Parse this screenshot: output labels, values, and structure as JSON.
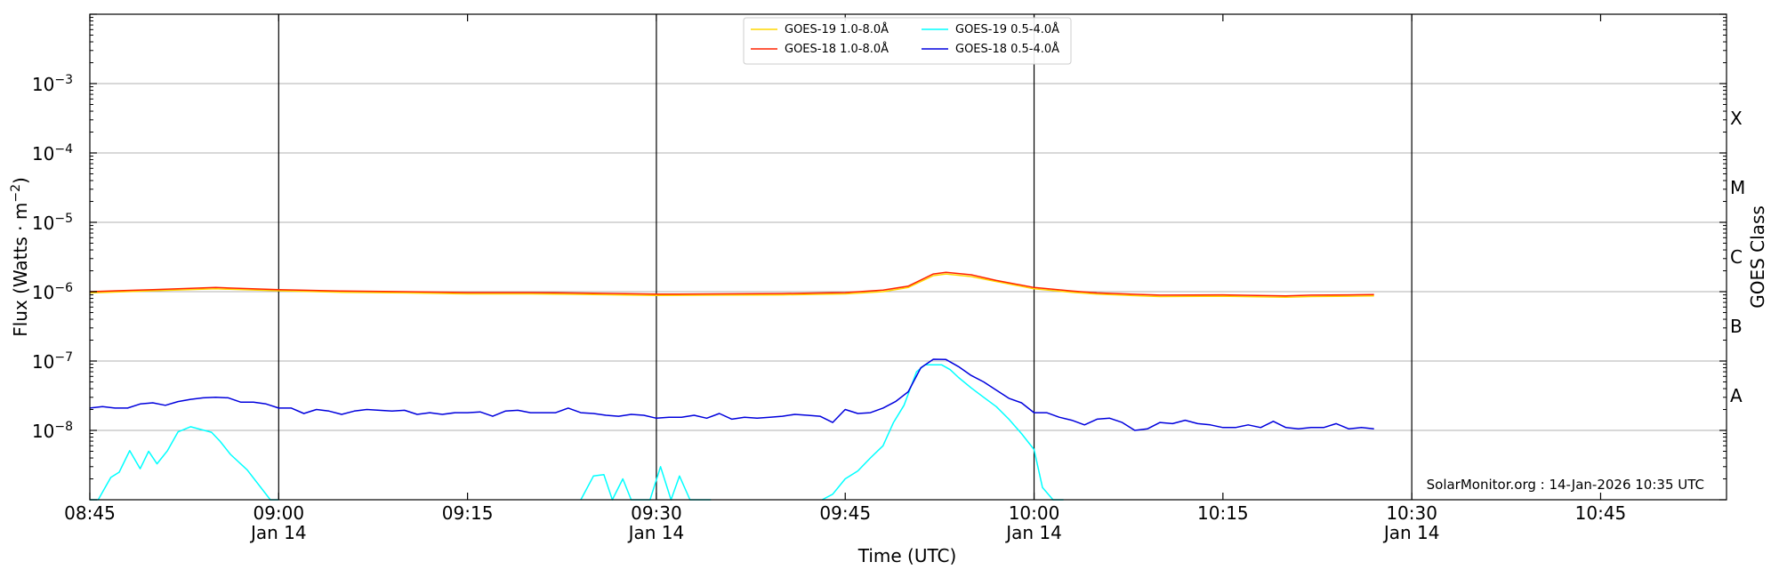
{
  "chart_data": {
    "type": "line",
    "xlabel": "Time (UTC)",
    "ylabel": {
      "base": "Flux (Watts · m",
      "sup": "−2",
      "tail": ")"
    },
    "right_label": "GOES Class",
    "credit": "SolarMonitor.org : 14-Jan-2026 10:35 UTC",
    "y_scale": "log",
    "ylim": [
      1e-09,
      0.01
    ],
    "x_range": [
      "08:45",
      "10:55"
    ],
    "grid": "horizontal at decades",
    "legend_position": "top-center",
    "x_ticks": [
      {
        "t": "08:45",
        "label": "08:45",
        "sub": ""
      },
      {
        "t": "09:00",
        "label": "09:00",
        "sub": "Jan 14"
      },
      {
        "t": "09:15",
        "label": "09:15",
        "sub": ""
      },
      {
        "t": "09:30",
        "label": "09:30",
        "sub": "Jan 14"
      },
      {
        "t": "09:45",
        "label": "09:45",
        "sub": ""
      },
      {
        "t": "10:00",
        "label": "10:00",
        "sub": "Jan 14"
      },
      {
        "t": "10:15",
        "label": "10:15",
        "sub": ""
      },
      {
        "t": "10:30",
        "label": "10:30",
        "sub": "Jan 14"
      },
      {
        "t": "10:45",
        "label": "10:45",
        "sub": ""
      }
    ],
    "vertical_markers": [
      "09:00",
      "09:30",
      "10:00",
      "10:30"
    ],
    "y_ticks": [
      {
        "exp": -8,
        "label": "10",
        "sup": "−8"
      },
      {
        "exp": -7,
        "label": "10",
        "sup": "−7"
      },
      {
        "exp": -6,
        "label": "10",
        "sup": "−6"
      },
      {
        "exp": -5,
        "label": "10",
        "sup": "−5"
      },
      {
        "exp": -4,
        "label": "10",
        "sup": "−4"
      },
      {
        "exp": -3,
        "label": "10",
        "sup": "−3"
      }
    ],
    "goes_classes": [
      {
        "label": "A",
        "exp": -7.5
      },
      {
        "label": "B",
        "exp": -6.5
      },
      {
        "label": "C",
        "exp": -5.5
      },
      {
        "label": "M",
        "exp": -4.5
      },
      {
        "label": "X",
        "exp": -3.5
      }
    ],
    "series": [
      {
        "name": "GOES-19 1.0-8.0Å",
        "color": "#ffd700",
        "x": [
          "08:45",
          "08:50",
          "08:55",
          "09:00",
          "09:05",
          "09:10",
          "09:15",
          "09:20",
          "09:25",
          "09:30",
          "09:35",
          "09:40",
          "09:45",
          "09:48",
          "09:50",
          "09:52",
          "09:53",
          "09:55",
          "09:57",
          "10:00",
          "10:03",
          "10:05",
          "10:10",
          "10:15",
          "10:20",
          "10:22",
          "10:25",
          "10:27"
        ],
        "y": [
          9.6e-07,
          1.03e-06,
          1.1e-06,
          1.03e-06,
          9.8e-07,
          9.6e-07,
          9.3e-07,
          9.3e-07,
          9.1e-07,
          8.8e-07,
          8.9e-07,
          9e-07,
          9.3e-07,
          1e-06,
          1.15e-06,
          1.7e-06,
          1.8e-06,
          1.65e-06,
          1.4e-06,
          1.1e-06,
          9.8e-07,
          9.2e-07,
          8.5e-07,
          8.6e-07,
          8.3e-07,
          8.5e-07,
          8.6e-07,
          8.7e-07
        ]
      },
      {
        "name": "GOES-18 1.0-8.0Å",
        "color": "#ff2200",
        "x": [
          "08:45",
          "08:50",
          "08:55",
          "09:00",
          "09:05",
          "09:10",
          "09:15",
          "09:20",
          "09:25",
          "09:30",
          "09:35",
          "09:40",
          "09:45",
          "09:48",
          "09:50",
          "09:52",
          "09:53",
          "09:55",
          "09:57",
          "10:00",
          "10:03",
          "10:05",
          "10:10",
          "10:15",
          "10:20",
          "10:22",
          "10:25",
          "10:27"
        ],
        "y": [
          1e-06,
          1.07e-06,
          1.15e-06,
          1.07e-06,
          1.02e-06,
          1e-06,
          9.7e-07,
          9.7e-07,
          9.5e-07,
          9.2e-07,
          9.3e-07,
          9.4e-07,
          9.7e-07,
          1.05e-06,
          1.2e-06,
          1.8e-06,
          1.9e-06,
          1.75e-06,
          1.45e-06,
          1.15e-06,
          1.02e-06,
          9.6e-07,
          8.9e-07,
          9e-07,
          8.7e-07,
          8.9e-07,
          9e-07,
          9.1e-07
        ]
      },
      {
        "name": "GOES-19 0.5-4.0Å",
        "color": "#00ffff",
        "segments": [
          {
            "x": [
              "08:45",
              "08:45:40",
              "08:46:40",
              "08:47:20",
              "08:48:10",
              "08:49:00",
              "08:49:40",
              "08:50:20",
              "08:51:10",
              "08:52:00",
              "08:53:00",
              "08:54:40",
              "08:55:20",
              "08:56:10",
              "08:57:30",
              "08:59:20",
              "09:00"
            ],
            "y": [
              1e-09,
              1e-09,
              2.1e-09,
              2.5e-09,
              5.1e-09,
              2.8e-09,
              5e-09,
              3.3e-09,
              5.1e-09,
              9.5e-09,
              1.13e-08,
              9.4e-09,
              7e-09,
              4.5e-09,
              2.7e-09,
              1e-09,
              1e-09
            ]
          },
          {
            "x": [
              "09:24:00",
              "09:25:00",
              "09:25:50",
              "09:26:30",
              "09:27:20",
              "09:28:00",
              "09:28:40",
              "09:29:30",
              "09:30:20",
              "09:31:10",
              "09:31:50",
              "09:32:40",
              "09:33:30",
              "09:34:20"
            ],
            "y": [
              1e-09,
              2.2e-09,
              2.3e-09,
              1e-09,
              2e-09,
              1e-09,
              1e-09,
              1e-09,
              3e-09,
              1e-09,
              2.2e-09,
              1e-09,
              1e-09,
              1e-09
            ]
          },
          {
            "x": [
              "09:43:10",
              "09:44:00",
              "09:45:00",
              "09:46:00",
              "09:47:00",
              "09:48:00",
              "09:48:50",
              "09:49:40",
              "09:50:40",
              "09:51:20",
              "09:52:40",
              "09:53:20",
              "09:54:00",
              "09:55:00",
              "09:56:00",
              "09:57:00",
              "09:58:00",
              "09:59:00",
              "10:00:00",
              "10:00:40",
              "10:01:30",
              "10:02:20"
            ],
            "y": [
              1e-09,
              1.2e-09,
              2e-09,
              2.6e-09,
              4e-09,
              6e-09,
              1.3e-08,
              2.3e-08,
              7e-08,
              8.8e-08,
              8.8e-08,
              7.5e-08,
              5.8e-08,
              4.1e-08,
              3e-08,
              2.2e-08,
              1.45e-08,
              9e-09,
              5.3e-09,
              1.5e-09,
              1e-09,
              1e-09
            ]
          }
        ]
      },
      {
        "name": "GOES-18 0.5-4.0Å",
        "color": "#0000dd",
        "x": [
          "08:45",
          "08:46",
          "08:47",
          "08:48",
          "08:49",
          "08:50",
          "08:51",
          "08:52",
          "08:53",
          "08:54",
          "08:55",
          "08:56",
          "08:57",
          "08:58",
          "08:59",
          "09:00",
          "09:01",
          "09:02",
          "09:03",
          "09:04",
          "09:05",
          "09:06",
          "09:07",
          "09:08",
          "09:09",
          "09:10",
          "09:11",
          "09:12",
          "09:13",
          "09:14",
          "09:15",
          "09:16",
          "09:17",
          "09:18",
          "09:19",
          "09:20",
          "09:21",
          "09:22",
          "09:23",
          "09:24",
          "09:25",
          "09:26",
          "09:27",
          "09:28",
          "09:29",
          "09:30",
          "09:31",
          "09:32",
          "09:33",
          "09:34",
          "09:35",
          "09:36",
          "09:37",
          "09:38",
          "09:39",
          "09:40",
          "09:41",
          "09:42",
          "09:43",
          "09:44",
          "09:45",
          "09:46",
          "09:47",
          "09:48",
          "09:49",
          "09:50",
          "09:51",
          "09:52",
          "09:53",
          "09:54",
          "09:55",
          "09:56",
          "09:57",
          "09:58",
          "09:59",
          "10:00",
          "10:01",
          "10:02",
          "10:03",
          "10:04",
          "10:05",
          "10:06",
          "10:07",
          "10:08",
          "10:09",
          "10:10",
          "10:11",
          "10:12",
          "10:13",
          "10:14",
          "10:15",
          "10:16",
          "10:17",
          "10:18",
          "10:19",
          "10:20",
          "10:21",
          "10:22",
          "10:23",
          "10:24",
          "10:25",
          "10:26",
          "10:27"
        ],
        "y": [
          2.1e-08,
          2.2e-08,
          2.1e-08,
          2.1e-08,
          2.4e-08,
          2.5e-08,
          2.3e-08,
          2.6e-08,
          2.8e-08,
          2.95e-08,
          3e-08,
          2.95e-08,
          2.55e-08,
          2.55e-08,
          2.4e-08,
          2.1e-08,
          2.1e-08,
          1.75e-08,
          2e-08,
          1.9e-08,
          1.7e-08,
          1.9e-08,
          2e-08,
          1.95e-08,
          1.9e-08,
          1.95e-08,
          1.7e-08,
          1.8e-08,
          1.7e-08,
          1.8e-08,
          1.8e-08,
          1.85e-08,
          1.6e-08,
          1.9e-08,
          1.95e-08,
          1.8e-08,
          1.8e-08,
          1.8e-08,
          2.1e-08,
          1.8e-08,
          1.75e-08,
          1.65e-08,
          1.6e-08,
          1.7e-08,
          1.65e-08,
          1.5e-08,
          1.55e-08,
          1.55e-08,
          1.65e-08,
          1.5e-08,
          1.75e-08,
          1.45e-08,
          1.55e-08,
          1.5e-08,
          1.55e-08,
          1.6e-08,
          1.7e-08,
          1.65e-08,
          1.6e-08,
          1.3e-08,
          2e-08,
          1.75e-08,
          1.8e-08,
          2.1e-08,
          2.6e-08,
          3.6e-08,
          8e-08,
          1.06e-07,
          1.05e-07,
          8.3e-08,
          6.2e-08,
          5e-08,
          3.8e-08,
          2.9e-08,
          2.5e-08,
          1.8e-08,
          1.8e-08,
          1.55e-08,
          1.4e-08,
          1.2e-08,
          1.45e-08,
          1.5e-08,
          1.3e-08,
          1e-08,
          1.05e-08,
          1.3e-08,
          1.25e-08,
          1.4e-08,
          1.25e-08,
          1.2e-08,
          1.1e-08,
          1.1e-08,
          1.2e-08,
          1.1e-08,
          1.35e-08,
          1.1e-08,
          1.05e-08,
          1.1e-08,
          1.1e-08,
          1.25e-08,
          1.05e-08,
          1.1e-08,
          1.05e-08
        ]
      }
    ]
  }
}
